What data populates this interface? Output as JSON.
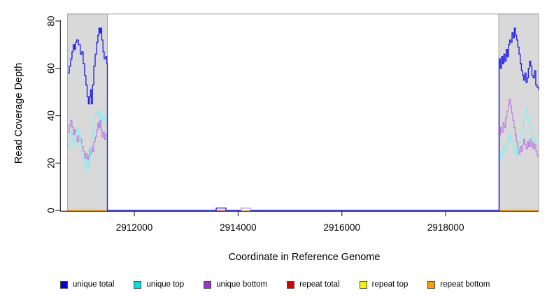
{
  "chart_data": {
    "type": "line",
    "subtype": "step-coverage",
    "title": "",
    "xlabel": "Coordinate in Reference Genome",
    "ylabel": "Read Coverage Depth",
    "xlim": [
      2910720,
      2919790
    ],
    "ylim": [
      0,
      83
    ],
    "x_ticks": [
      "2912000",
      "2914000",
      "2916000",
      "2918000"
    ],
    "x_tick_values": [
      2912000,
      2914000,
      2916000,
      2918000
    ],
    "y_ticks": [
      "0",
      "20",
      "40",
      "60",
      "80"
    ],
    "y_tick_values": [
      0,
      20,
      40,
      60,
      80
    ],
    "grid": false,
    "legend_position": "bottom",
    "shaded_regions": [
      {
        "start": 2910715,
        "end": 2911481,
        "color": "#d9d9d9"
      },
      {
        "start": 2919022,
        "end": 2919790,
        "color": "#d9d9d9"
      }
    ],
    "series": [
      {
        "label": "unique total",
        "swatch": "#0000dd",
        "color": "#2525ea",
        "width": 1.4,
        "z": 5,
        "segments": [
          [
            [
              2910720,
              58
            ],
            [
              2910748,
              61
            ],
            [
              2910775,
              64
            ],
            [
              2910800,
              67
            ],
            [
              2910822,
              70
            ],
            [
              2910845,
              68
            ],
            [
              2910868,
              71
            ],
            [
              2910890,
              72
            ],
            [
              2910925,
              70
            ],
            [
              2910958,
              66
            ],
            [
              2910988,
              67
            ],
            [
              2911015,
              62
            ],
            [
              2911042,
              57
            ],
            [
              2911068,
              53
            ],
            [
              2911092,
              48
            ],
            [
              2911115,
              45
            ],
            [
              2911138,
              48
            ],
            [
              2911158,
              51
            ],
            [
              2911172,
              45
            ],
            [
              2911195,
              53
            ],
            [
              2911220,
              61
            ],
            [
              2911245,
              66
            ],
            [
              2911275,
              71
            ],
            [
              2911298,
              74
            ],
            [
              2911318,
              77
            ],
            [
              2911336,
              75
            ],
            [
              2911352,
              77
            ],
            [
              2911372,
              72
            ],
            [
              2911396,
              67
            ],
            [
              2911420,
              64
            ],
            [
              2911446,
              65
            ],
            [
              2911470,
              62
            ],
            [
              2911481,
              0
            ],
            [
              2913575,
              0
            ],
            [
              2913578,
              1
            ],
            [
              2913762,
              1
            ],
            [
              2913765,
              0
            ],
            [
              2914056,
              0
            ]
          ],
          [
            [
              2914240,
              0
            ],
            [
              2919026,
              0
            ],
            [
              2919030,
              64
            ],
            [
              2919052,
              60
            ],
            [
              2919075,
              65
            ],
            [
              2919098,
              62
            ],
            [
              2919120,
              66
            ],
            [
              2919142,
              63
            ],
            [
              2919165,
              68
            ],
            [
              2919188,
              65
            ],
            [
              2919210,
              70
            ],
            [
              2919232,
              72
            ],
            [
              2919255,
              71
            ],
            [
              2919278,
              75
            ],
            [
              2919300,
              73
            ],
            [
              2919322,
              77
            ],
            [
              2919345,
              74
            ],
            [
              2919368,
              72
            ],
            [
              2919390,
              69
            ],
            [
              2919412,
              66
            ],
            [
              2919435,
              62
            ],
            [
              2919458,
              59
            ],
            [
              2919480,
              57
            ],
            [
              2919502,
              55
            ],
            [
              2919525,
              58
            ],
            [
              2919548,
              54
            ],
            [
              2919570,
              56
            ],
            [
              2919592,
              60
            ],
            [
              2919615,
              63
            ],
            [
              2919638,
              61
            ],
            [
              2919660,
              57
            ],
            [
              2919685,
              56
            ],
            [
              2919710,
              59
            ],
            [
              2919735,
              53
            ],
            [
              2919760,
              52
            ],
            [
              2919790,
              51
            ]
          ]
        ]
      },
      {
        "label": "unique top",
        "swatch": "#00e0e0",
        "color": "#85f0f0",
        "width": 1.2,
        "z": 4,
        "segments": [
          [
            [
              2910720,
              27
            ],
            [
              2910748,
              31
            ],
            [
              2910775,
              33
            ],
            [
              2910800,
              30
            ],
            [
              2910825,
              27
            ],
            [
              2910850,
              30
            ],
            [
              2910875,
              33
            ],
            [
              2910900,
              35
            ],
            [
              2910930,
              32
            ],
            [
              2910960,
              28
            ],
            [
              2910988,
              25
            ],
            [
              2911015,
              22
            ],
            [
              2911042,
              19
            ],
            [
              2911068,
              17
            ],
            [
              2911092,
              21
            ],
            [
              2911115,
              18
            ],
            [
              2911138,
              22
            ],
            [
              2911158,
              26
            ],
            [
              2911178,
              30
            ],
            [
              2911198,
              34
            ],
            [
              2911222,
              38
            ],
            [
              2911248,
              41
            ],
            [
              2911275,
              42
            ],
            [
              2911298,
              40
            ],
            [
              2911318,
              42
            ],
            [
              2911338,
              39
            ],
            [
              2911358,
              41
            ],
            [
              2911378,
              38
            ],
            [
              2911400,
              40
            ],
            [
              2911425,
              38
            ],
            [
              2911450,
              37
            ],
            [
              2911481,
              0
            ]
          ],
          [
            [
              2919026,
              0
            ],
            [
              2919032,
              22
            ],
            [
              2919058,
              25
            ],
            [
              2919085,
              23
            ],
            [
              2919112,
              27
            ],
            [
              2919138,
              25
            ],
            [
              2919165,
              28
            ],
            [
              2919192,
              31
            ],
            [
              2919218,
              29
            ],
            [
              2919245,
              32
            ],
            [
              2919270,
              30
            ],
            [
              2919295,
              27
            ],
            [
              2919320,
              24
            ],
            [
              2919345,
              26
            ],
            [
              2919370,
              23
            ],
            [
              2919395,
              26
            ],
            [
              2919420,
              29
            ],
            [
              2919448,
              32
            ],
            [
              2919475,
              35
            ],
            [
              2919500,
              38
            ],
            [
              2919525,
              41
            ],
            [
              2919550,
              43
            ],
            [
              2919575,
              40
            ],
            [
              2919600,
              37
            ],
            [
              2919625,
              34
            ],
            [
              2919650,
              31
            ],
            [
              2919675,
              29
            ],
            [
              2919700,
              31
            ],
            [
              2919730,
              29
            ],
            [
              2919760,
              30
            ],
            [
              2919790,
              29
            ]
          ]
        ]
      },
      {
        "label": "unique bottom",
        "swatch": "#9933cc",
        "color": "#bb7de2",
        "width": 1.2,
        "z": 3,
        "segments": [
          [
            [
              2910720,
              33
            ],
            [
              2910748,
              36
            ],
            [
              2910775,
              38
            ],
            [
              2910800,
              35
            ],
            [
              2910825,
              32
            ],
            [
              2910850,
              34
            ],
            [
              2910875,
              31
            ],
            [
              2910900,
              29
            ],
            [
              2910930,
              32
            ],
            [
              2910960,
              30
            ],
            [
              2910988,
              27
            ],
            [
              2911015,
              25
            ],
            [
              2911042,
              22
            ],
            [
              2911068,
              24
            ],
            [
              2911092,
              21
            ],
            [
              2911115,
              23
            ],
            [
              2911138,
              26
            ],
            [
              2911158,
              24
            ],
            [
              2911178,
              27
            ],
            [
              2911198,
              25
            ],
            [
              2911222,
              29
            ],
            [
              2911248,
              31
            ],
            [
              2911275,
              34
            ],
            [
              2911298,
              37
            ],
            [
              2911318,
              35
            ],
            [
              2911338,
              38
            ],
            [
              2911358,
              34
            ],
            [
              2911378,
              31
            ],
            [
              2911400,
              33
            ],
            [
              2911425,
              30
            ],
            [
              2911450,
              32
            ],
            [
              2911481,
              0
            ],
            [
              2913570,
              0
            ]
          ],
          [
            [
              2913768,
              0
            ],
            [
              2914056,
              0
            ],
            [
              2914060,
              1
            ],
            [
              2914232,
              1
            ],
            [
              2914236,
              0
            ],
            [
              2919026,
              0
            ],
            [
              2919030,
              32
            ],
            [
              2919055,
              35
            ],
            [
              2919080,
              33
            ],
            [
              2919105,
              37
            ],
            [
              2919130,
              35
            ],
            [
              2919155,
              39
            ],
            [
              2919180,
              42
            ],
            [
              2919205,
              45
            ],
            [
              2919225,
              47
            ],
            [
              2919248,
              44
            ],
            [
              2919270,
              41
            ],
            [
              2919292,
              38
            ],
            [
              2919315,
              35
            ],
            [
              2919338,
              32
            ],
            [
              2919362,
              29
            ],
            [
              2919385,
              26
            ],
            [
              2919408,
              24
            ],
            [
              2919432,
              27
            ],
            [
              2919455,
              25
            ],
            [
              2919478,
              28
            ],
            [
              2919502,
              30
            ],
            [
              2919525,
              28
            ],
            [
              2919548,
              26
            ],
            [
              2919572,
              29
            ],
            [
              2919595,
              27
            ],
            [
              2919618,
              30
            ],
            [
              2919642,
              27
            ],
            [
              2919665,
              29
            ],
            [
              2919688,
              26
            ],
            [
              2919712,
              28
            ],
            [
              2919736,
              25
            ],
            [
              2919760,
              23
            ],
            [
              2919790,
              24
            ]
          ]
        ]
      },
      {
        "label": "repeat total",
        "swatch": "#dd0000",
        "color": "#ee7070",
        "width": 1.3,
        "z": 0,
        "segments": [
          [
            [
              2913570,
              0
            ],
            [
              2913768,
              0
            ]
          ]
        ]
      },
      {
        "label": "repeat top",
        "swatch": "#f5f500",
        "color": "#dde985",
        "width": 1.3,
        "z": 1,
        "segments": [
          [
            [
              2914052,
              0
            ],
            [
              2914240,
              0
            ]
          ]
        ]
      },
      {
        "label": "repeat bottom",
        "swatch": "#ff9c00",
        "color": "#ffa013",
        "width": 1.6,
        "z": 2,
        "segments": [
          [
            [
              2910715,
              0
            ],
            [
              2911481,
              0
            ]
          ],
          [
            [
              2919022,
              0
            ],
            [
              2919790,
              0
            ]
          ]
        ]
      }
    ]
  },
  "colors": {
    "background": "#ffffff",
    "shade_fill": "#d9d9d9",
    "shade_border": "#9c9c9c",
    "axis": "#1c1c1c",
    "tick_label": "#000000"
  }
}
